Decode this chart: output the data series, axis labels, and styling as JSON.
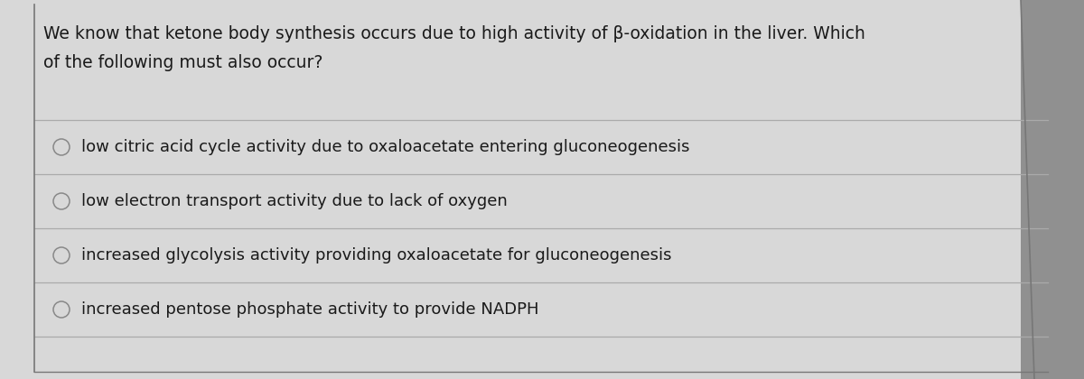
{
  "question": "We know that ketone body synthesis occurs due to high activity of β-oxidation in the liver. Which\nof the following must also occur?",
  "options": [
    "low citric acid cycle activity due to oxaloacetate entering gluconeogenesis",
    "low electron transport activity due to lack of oxygen",
    "increased glycolysis activity providing oxaloacetate for gluconeogenesis",
    "increased pentose phosphate activity to provide NADPH"
  ],
  "outer_bg_color": "#909090",
  "inner_bg_color": "#d8d8d8",
  "text_color": "#1a1a1a",
  "question_fontsize": 13.5,
  "option_fontsize": 13.0,
  "line_color": "#aaaaaa",
  "circle_color": "#888888",
  "fig_width": 12.0,
  "fig_height": 4.2
}
